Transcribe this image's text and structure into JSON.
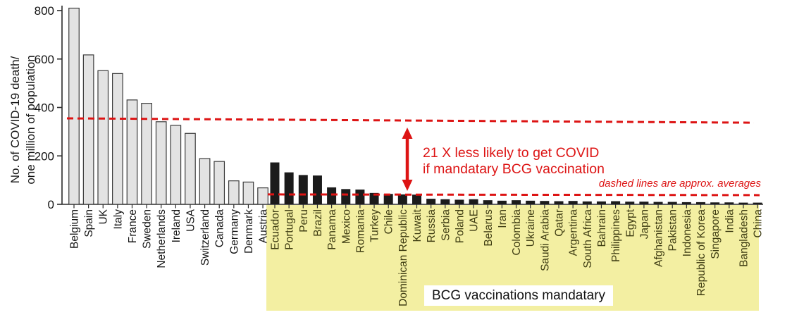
{
  "chart_data": {
    "type": "bar",
    "title": "",
    "yaxis": {
      "label_line1": "No. of COVID-19 death/",
      "label_line2": "one million of population",
      "ticks": [
        0,
        200,
        400,
        600,
        800
      ],
      "max": 800
    },
    "grid": "off",
    "groups": [
      {
        "name": "bcg-not-mandatory",
        "bar_fill": "#e3e3e3",
        "bar_stroke": "#3c3c3c",
        "label_color": "#141414",
        "countries": [
          "Belgium",
          "Spain",
          "UK",
          "Italy",
          "France",
          "Sweden",
          "Netherlands",
          "Ireland",
          "USA",
          "Switzerland",
          "Canada",
          "Germany",
          "Denmark",
          "Austria"
        ],
        "values": [
          810,
          617,
          552,
          540,
          431,
          417,
          341,
          326,
          293,
          189,
          177,
          97,
          92,
          68
        ]
      },
      {
        "name": "bcg-mandatory",
        "bar_fill": "#1b1b1b",
        "bar_stroke": "",
        "label_color": "#3e3c12",
        "countries": [
          "Ecuador",
          "Portugal",
          "Peru",
          "Brazil",
          "Panama",
          "Mexico",
          "Romania",
          "Turkey",
          "Chile",
          "Dominican Republic",
          "Kuwait",
          "Russia",
          "Serbia",
          "Poland",
          "UAE",
          "Belarus",
          "Iran",
          "Colombia",
          "Ukraine",
          "Saudi Arabia",
          "Qatar",
          "Argentina",
          "South Africa",
          "Bahrain",
          "Philippines",
          "Egypt",
          "Japan",
          "Afghanistan",
          "Pakistan",
          "Indonesia",
          "Republic of Korea",
          "Singapore",
          "India",
          "Bangladesh",
          "China"
        ],
        "values": [
          173,
          132,
          121,
          119,
          70,
          63,
          61,
          47,
          43,
          41,
          40,
          23,
          21,
          19,
          21,
          17,
          15,
          17,
          15,
          14,
          13,
          14,
          12,
          12,
          13,
          11,
          11,
          10,
          10,
          9,
          9,
          8,
          8,
          7,
          7
        ]
      }
    ],
    "average_lines": {
      "upper": {
        "start_value": 355,
        "end_value": 337
      },
      "lower": {
        "start_value": 41,
        "end_value": 38
      },
      "style": "dashed"
    },
    "annotations": {
      "ratio_line1": "21 X less likely to get COVID",
      "ratio_line2": "if mandatary BCG vaccination",
      "dashed_note": "dashed lines are approx. averages",
      "bcg_box_label": "BCG vaccinations mandatary"
    },
    "colors": {
      "red": "#dd1414",
      "highlight_bg": "#f3efa2",
      "axis": "#2b2b2b",
      "tick_label": "#141414"
    }
  }
}
